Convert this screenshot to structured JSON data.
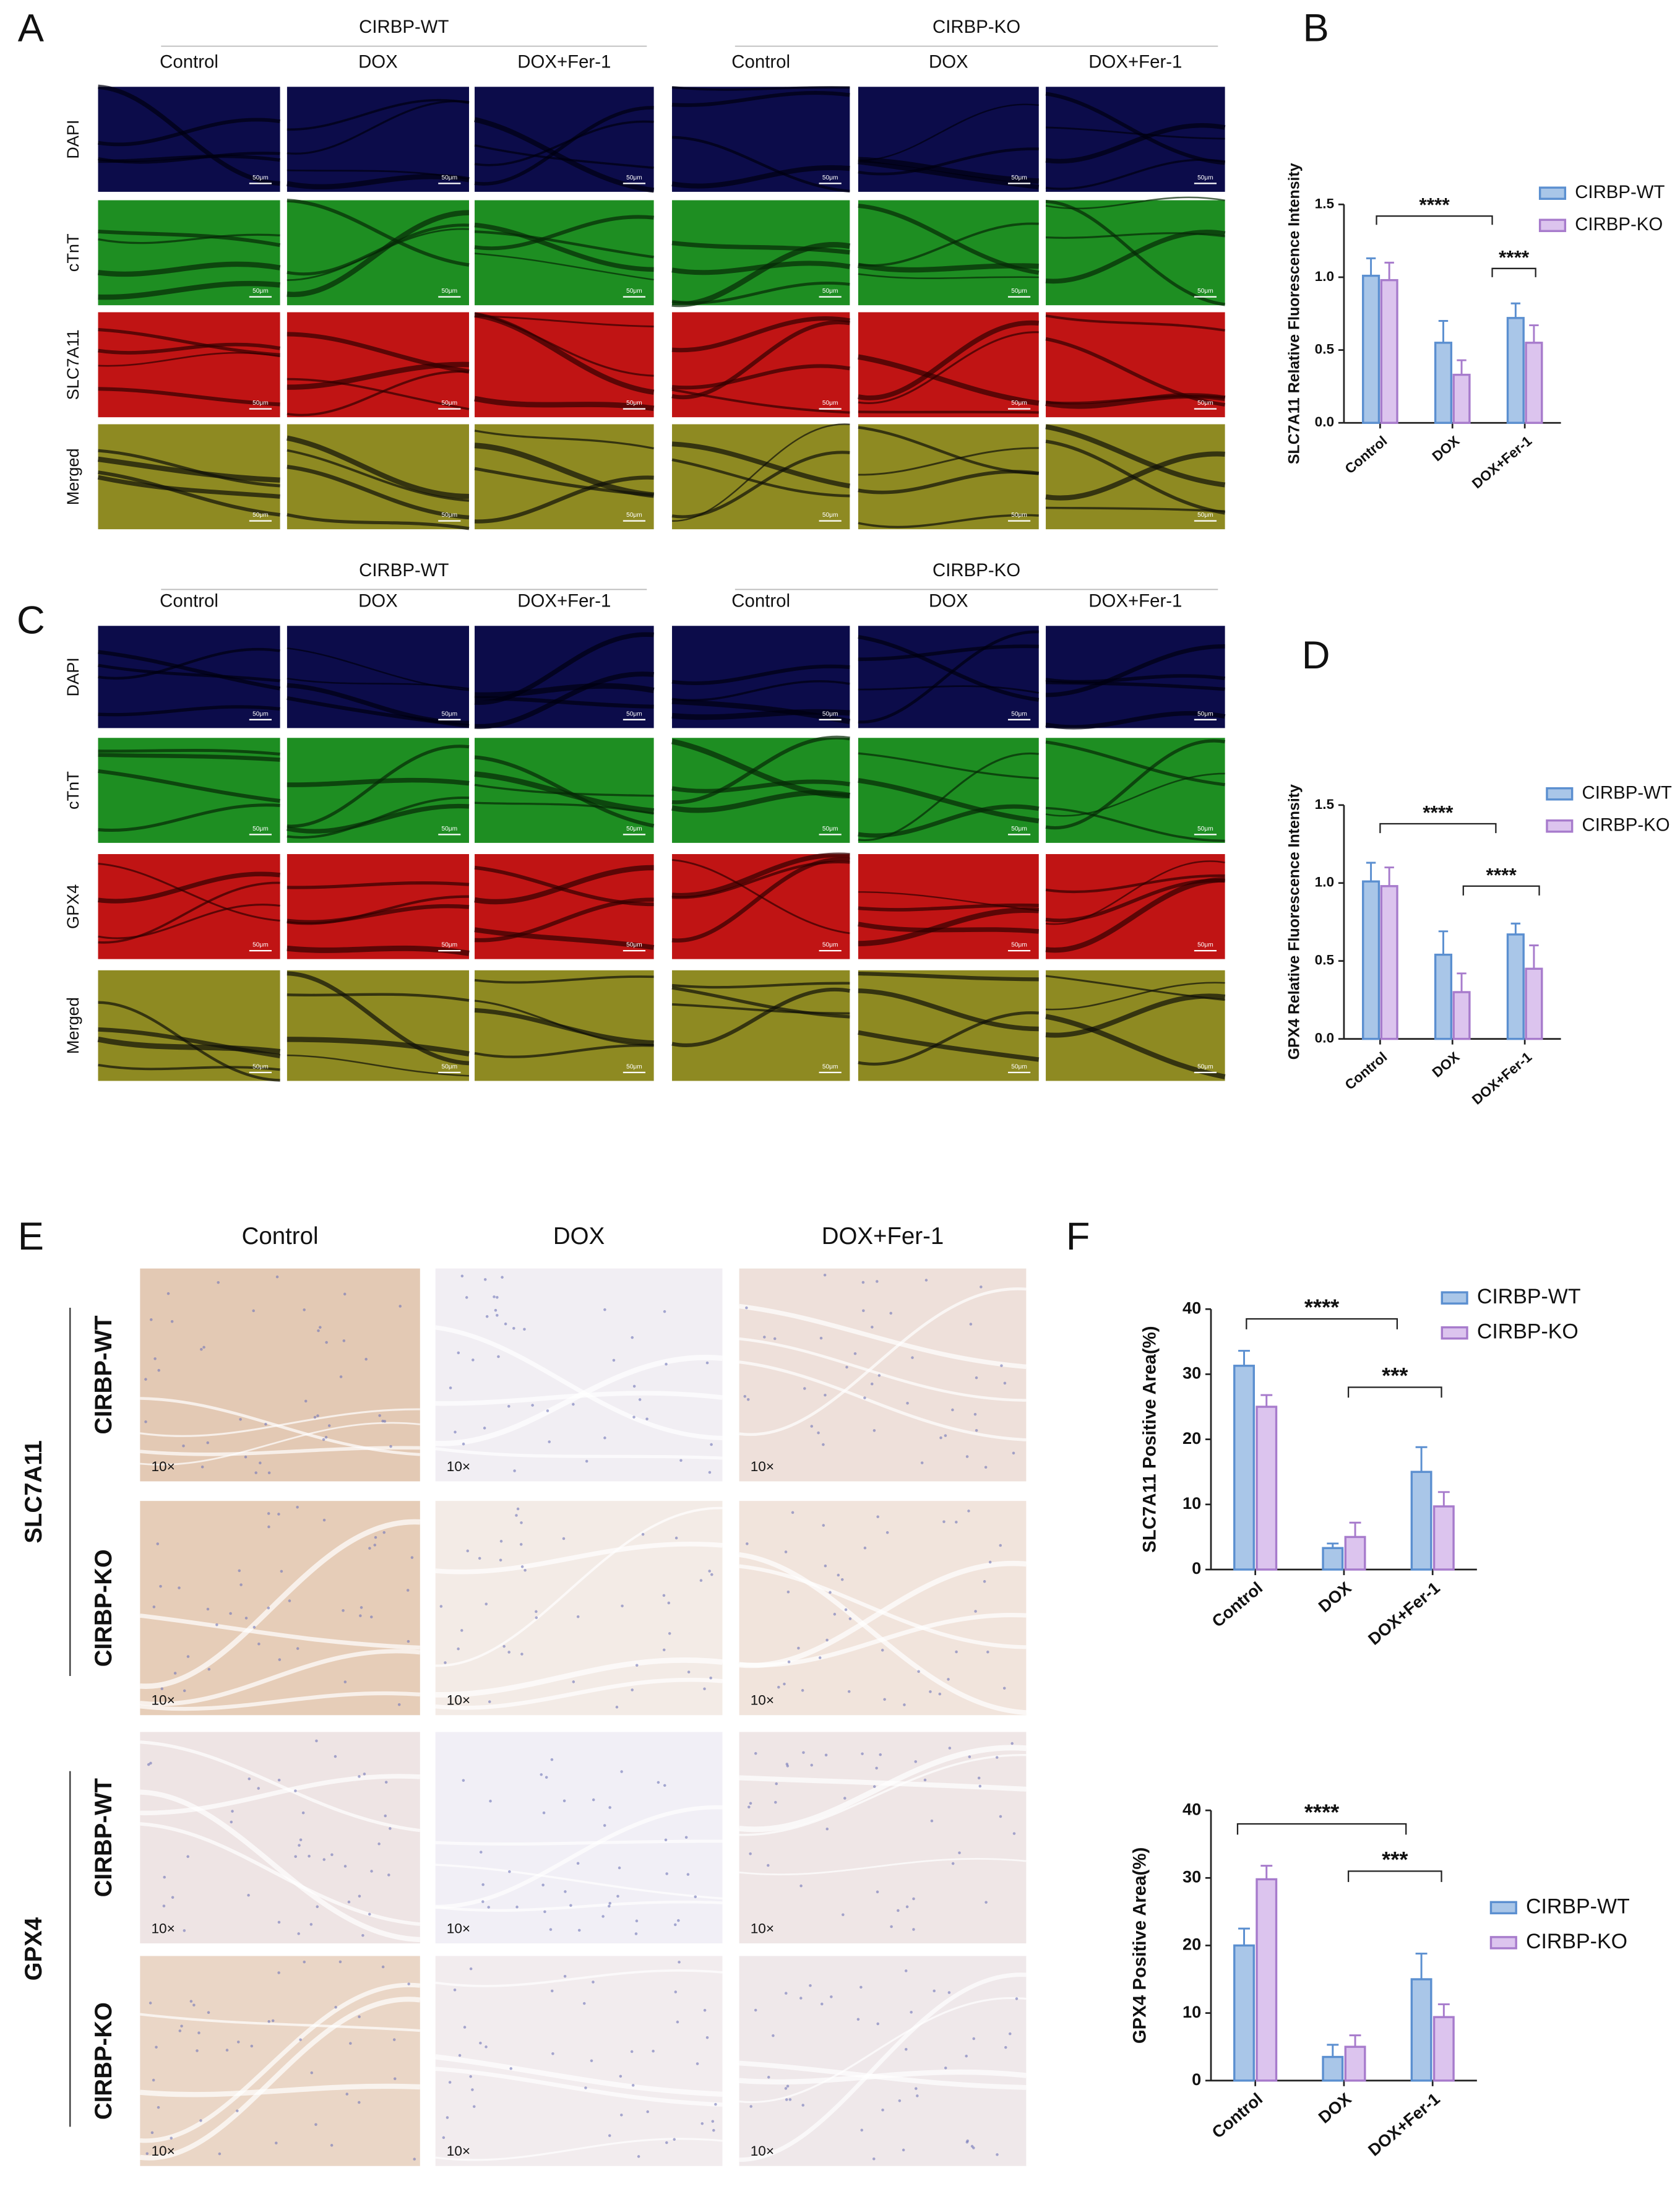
{
  "panel_letters": [
    "A",
    "B",
    "C",
    "D",
    "E",
    "F"
  ],
  "if_panels": [
    {
      "groups": [
        "CIRBP-WT",
        "CIRBP-KO"
      ],
      "columns": [
        "Control",
        "DOX",
        "DOX+Fer-1"
      ],
      "rows": [
        "DAPI",
        "cTnT",
        "SLC7A11",
        "Merged"
      ],
      "scale_bar": "50μm"
    },
    {
      "groups": [
        "CIRBP-WT",
        "CIRBP-KO"
      ],
      "columns": [
        "Control",
        "DOX",
        "DOX+Fer-1"
      ],
      "rows": [
        "DAPI",
        "cTnT",
        "GPX4",
        "Merged"
      ],
      "scale_bar": "50μm"
    }
  ],
  "ihc_panel": {
    "columns": [
      "Control",
      "DOX",
      "DOX+Fer-1"
    ],
    "markers": [
      "SLC7A11",
      "GPX4"
    ],
    "groups": [
      "CIRBP-WT",
      "CIRBP-KO"
    ],
    "magnification": "10×"
  },
  "chart_data": [
    {
      "type": "bar",
      "ylabel": "SLC7A11 Relative Fluorescence Intensity",
      "categories": [
        "Control",
        "DOX",
        "DOX+Fer-1"
      ],
      "ylim": [
        0,
        1.5
      ],
      "yticks": [
        {
          "value": 0,
          "label": "0.0"
        },
        0.5,
        {
          "value": 1,
          "label": "1.0"
        },
        1.5
      ],
      "legend": "upper right",
      "series": [
        {
          "name": "CIRBP-WT",
          "color": "#a9c6e8",
          "edgecolor": "#5b8fd0",
          "values": [
            1.01,
            0.55,
            0.72
          ],
          "errors": [
            0.12,
            0.15,
            0.1
          ]
        },
        {
          "name": "CIRBP-KO",
          "color": "#dcc4ee",
          "edgecolor": "#a77bcc",
          "values": [
            0.98,
            0.33,
            0.55
          ],
          "errors": [
            0.12,
            0.1,
            0.12
          ]
        }
      ],
      "significance": [
        "****",
        "****"
      ]
    },
    {
      "type": "bar",
      "ylabel": "GPX4 Relative Fluorescence Intensity",
      "categories": [
        "Control",
        "DOX",
        "DOX+Fer-1"
      ],
      "ylim": [
        0,
        1.5
      ],
      "yticks": [
        {
          "value": 0,
          "label": "0.0"
        },
        0.5,
        {
          "value": 1,
          "label": "1.0"
        },
        1.5
      ],
      "legend": "upper right",
      "series": [
        {
          "name": "CIRBP-WT",
          "color": "#a9c6e8",
          "edgecolor": "#5b8fd0",
          "values": [
            1.01,
            0.54,
            0.67
          ],
          "errors": [
            0.12,
            0.15,
            0.07
          ]
        },
        {
          "name": "CIRBP-KO",
          "color": "#dcc4ee",
          "edgecolor": "#a77bcc",
          "values": [
            0.98,
            0.3,
            0.45
          ],
          "errors": [
            0.12,
            0.12,
            0.15
          ]
        }
      ],
      "significance": [
        "****",
        "****"
      ]
    },
    {
      "type": "bar",
      "ylabel": "SLC7A11 Positive Area(%)",
      "categories": [
        "Control",
        "DOX",
        "DOX+Fer-1"
      ],
      "ylim": [
        0,
        40
      ],
      "yticks": [
        0,
        10,
        20,
        30,
        40
      ],
      "legend": "upper right",
      "series": [
        {
          "name": "CIRBP-WT",
          "color": "#a9c6e8",
          "edgecolor": "#5b8fd0",
          "values": [
            31.3,
            3.3,
            15
          ],
          "errors": [
            2.3,
            0.7,
            3.8
          ]
        },
        {
          "name": "CIRBP-KO",
          "color": "#dcc4ee",
          "edgecolor": "#a77bcc",
          "values": [
            25,
            5,
            9.7
          ],
          "errors": [
            1.8,
            2.2,
            2.2
          ]
        }
      ],
      "significance": [
        "****",
        "***"
      ]
    },
    {
      "type": "bar",
      "ylabel": "GPX4 Positive Area(%)",
      "categories": [
        "Control",
        "DOX",
        "DOX+Fer-1"
      ],
      "ylim": [
        0,
        40
      ],
      "yticks": [
        0,
        10,
        20,
        30,
        40
      ],
      "legend": "center right",
      "series": [
        {
          "name": "CIRBP-WT",
          "color": "#a9c6e8",
          "edgecolor": "#5b8fd0",
          "values": [
            20,
            3.5,
            15
          ],
          "errors": [
            2.5,
            1.8,
            3.8
          ]
        },
        {
          "name": "CIRBP-KO",
          "color": "#dcc4ee",
          "edgecolor": "#a77bcc",
          "values": [
            29.8,
            5,
            9.4
          ],
          "errors": [
            2,
            1.7,
            1.9
          ]
        }
      ],
      "significance": [
        "****",
        "***"
      ]
    }
  ]
}
